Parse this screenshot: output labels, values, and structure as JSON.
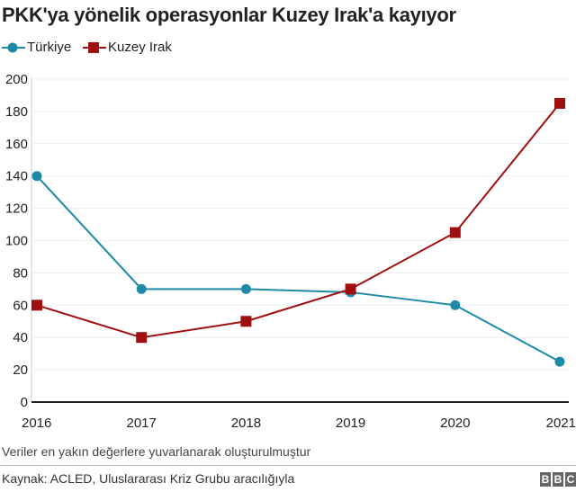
{
  "chart_data": {
    "type": "line",
    "title": "PKK'ya yönelik operasyonlar Kuzey Irak'a kayıyor",
    "x": [
      "2016",
      "2017",
      "2018",
      "2019",
      "2020",
      "2021"
    ],
    "yticks": [
      0,
      20,
      40,
      60,
      80,
      100,
      120,
      140,
      160,
      180,
      200
    ],
    "ylim": [
      0,
      200
    ],
    "xlabel": "",
    "ylabel": "",
    "legend_position": "top-left",
    "series": [
      {
        "name": "Türkiye",
        "values": [
          140,
          70,
          70,
          68,
          60,
          25
        ],
        "color": "#1d8aa8",
        "marker": "circle"
      },
      {
        "name": "Kuzey Irak",
        "values": [
          60,
          40,
          50,
          70,
          105,
          185
        ],
        "color": "#a00f0f",
        "marker": "square"
      }
    ],
    "note": "Veriler en yakın değerlere yuvarlanarak oluşturulmuştur",
    "source": "Kaynak: ACLED, Uluslararası Kriz Grubu aracılığıyla",
    "logo": [
      "B",
      "B",
      "C"
    ]
  }
}
